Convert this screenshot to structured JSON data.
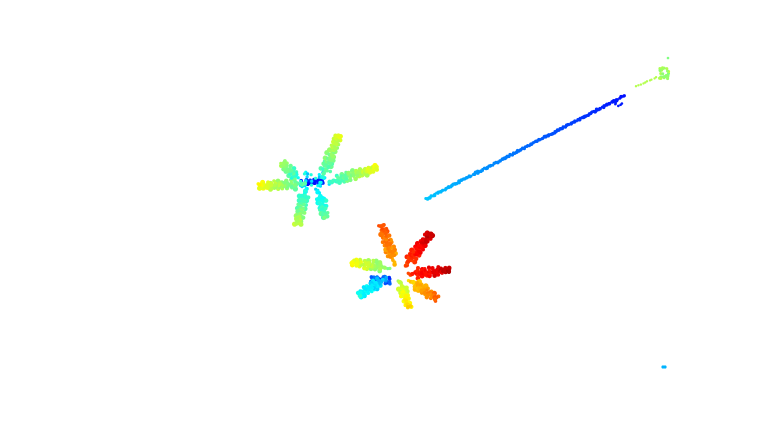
{
  "scene": {
    "background": "#ffffff",
    "colormap": "jet",
    "colormap_stops": [
      "#00008f",
      "#0000ff",
      "#0080ff",
      "#00ffff",
      "#80ff80",
      "#ffff00",
      "#ff8000",
      "#ff0000",
      "#800000"
    ],
    "objects": [
      {
        "kind": "plant",
        "description_key": "plant-left",
        "dominant_colors": [
          "#33dd22",
          "#22cc55",
          "#00ccff",
          "#0022cc"
        ]
      },
      {
        "kind": "plant",
        "description_key": "plant-lower",
        "dominant_colors": [
          "#ff3300",
          "#ff8800",
          "#ffdd00",
          "#66ee33",
          "#00bbff",
          "#0044ee"
        ]
      },
      {
        "kind": "stem",
        "description_key": "diagonal-stem",
        "dominant_colors": [
          "#1a9cff",
          "#0a55e8",
          "#0a33cc"
        ]
      },
      {
        "kind": "leaf-cluster",
        "description_key": "top-right-cluster",
        "dominant_colors": [
          "#22dd22",
          "#44ee44"
        ]
      },
      {
        "kind": "point",
        "description_key": "stray-point",
        "dominant_colors": [
          "#1a9cff"
        ]
      }
    ]
  }
}
